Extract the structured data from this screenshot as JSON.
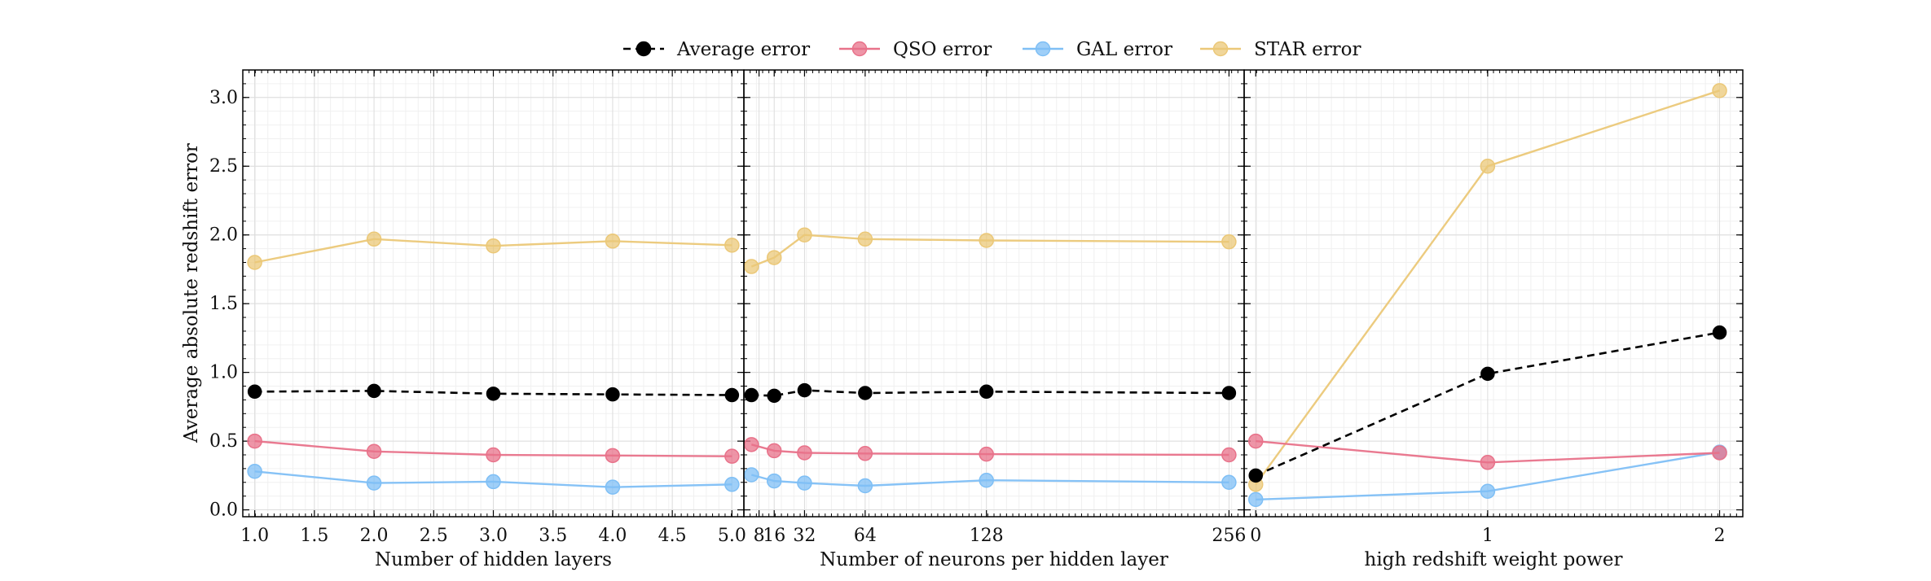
{
  "chart_data": {
    "type": "line",
    "ylabel": "Average absolute redshift error",
    "ylim": [
      -0.05,
      3.2
    ],
    "yticks": [
      0.0,
      0.5,
      1.0,
      1.5,
      2.0,
      2.5,
      3.0
    ],
    "ytick_labels": [
      "0.0",
      "0.5",
      "1.0",
      "1.5",
      "2.0",
      "2.5",
      "3.0"
    ],
    "grid": true,
    "legend": {
      "placement": "top-center",
      "entries": [
        "Average error",
        "QSO error",
        "GAL error",
        "STAR error"
      ]
    },
    "series_colors": {
      "avg": "#000000",
      "qso": "#e8728a",
      "gal": "#7fbff5",
      "star": "#ebc878"
    },
    "panels": [
      {
        "xlabel": "Number of hidden layers",
        "xlim": [
          0.9,
          5.1
        ],
        "xticks": [
          1.0,
          1.5,
          2.0,
          2.5,
          3.0,
          3.5,
          4.0,
          4.5,
          5.0
        ],
        "xtick_labels": [
          "1.0",
          "1.5",
          "2.0",
          "2.5",
          "3.0",
          "3.5",
          "4.0",
          "4.5",
          "5.0"
        ],
        "x": [
          1,
          2,
          3,
          4,
          5
        ],
        "series": [
          {
            "key": "avg",
            "name": "Average error",
            "values": [
              0.86,
              0.865,
              0.845,
              0.84,
              0.835
            ]
          },
          {
            "key": "qso",
            "name": "QSO error",
            "values": [
              0.5,
              0.425,
              0.4,
              0.395,
              0.39
            ]
          },
          {
            "key": "gal",
            "name": "GAL error",
            "values": [
              0.28,
              0.195,
              0.205,
              0.165,
              0.185
            ]
          },
          {
            "key": "star",
            "name": "STAR error",
            "values": [
              1.8,
              1.97,
              1.92,
              1.955,
              1.925
            ]
          }
        ]
      },
      {
        "xlabel": "Number of neurons per hidden layer",
        "xlim": [
          0,
          264
        ],
        "xticks": [
          8,
          16,
          32,
          64,
          128,
          256
        ],
        "xtick_labels": [
          "8",
          "16",
          "32",
          "64",
          "128",
          "256"
        ],
        "x": [
          4,
          16,
          32,
          64,
          128,
          256
        ],
        "series": [
          {
            "key": "avg",
            "name": "Average error",
            "values": [
              0.835,
              0.83,
              0.87,
              0.85,
              0.86,
              0.85
            ]
          },
          {
            "key": "qso",
            "name": "QSO error",
            "values": [
              0.475,
              0.43,
              0.415,
              0.41,
              0.405,
              0.4
            ]
          },
          {
            "key": "gal",
            "name": "GAL error",
            "values": [
              0.255,
              0.21,
              0.195,
              0.175,
              0.215,
              0.2
            ]
          },
          {
            "key": "star",
            "name": "STAR error",
            "values": [
              1.77,
              1.835,
              2.0,
              1.97,
              1.96,
              1.95
            ]
          }
        ]
      },
      {
        "xlabel": "high redshift weight power",
        "xlim": [
          -0.05,
          2.1
        ],
        "xticks": [
          0,
          1,
          2
        ],
        "xtick_labels": [
          "0",
          "1",
          "2"
        ],
        "x": [
          0,
          1,
          2
        ],
        "series": [
          {
            "key": "avg",
            "name": "Average error",
            "values": [
              0.25,
              0.99,
              1.29
            ]
          },
          {
            "key": "qso",
            "name": "QSO error",
            "values": [
              0.5,
              0.345,
              0.415
            ]
          },
          {
            "key": "gal",
            "name": "GAL error",
            "values": [
              0.075,
              0.135,
              0.42
            ]
          },
          {
            "key": "star",
            "name": "STAR error",
            "values": [
              0.185,
              2.5,
              3.05
            ]
          }
        ]
      }
    ]
  }
}
